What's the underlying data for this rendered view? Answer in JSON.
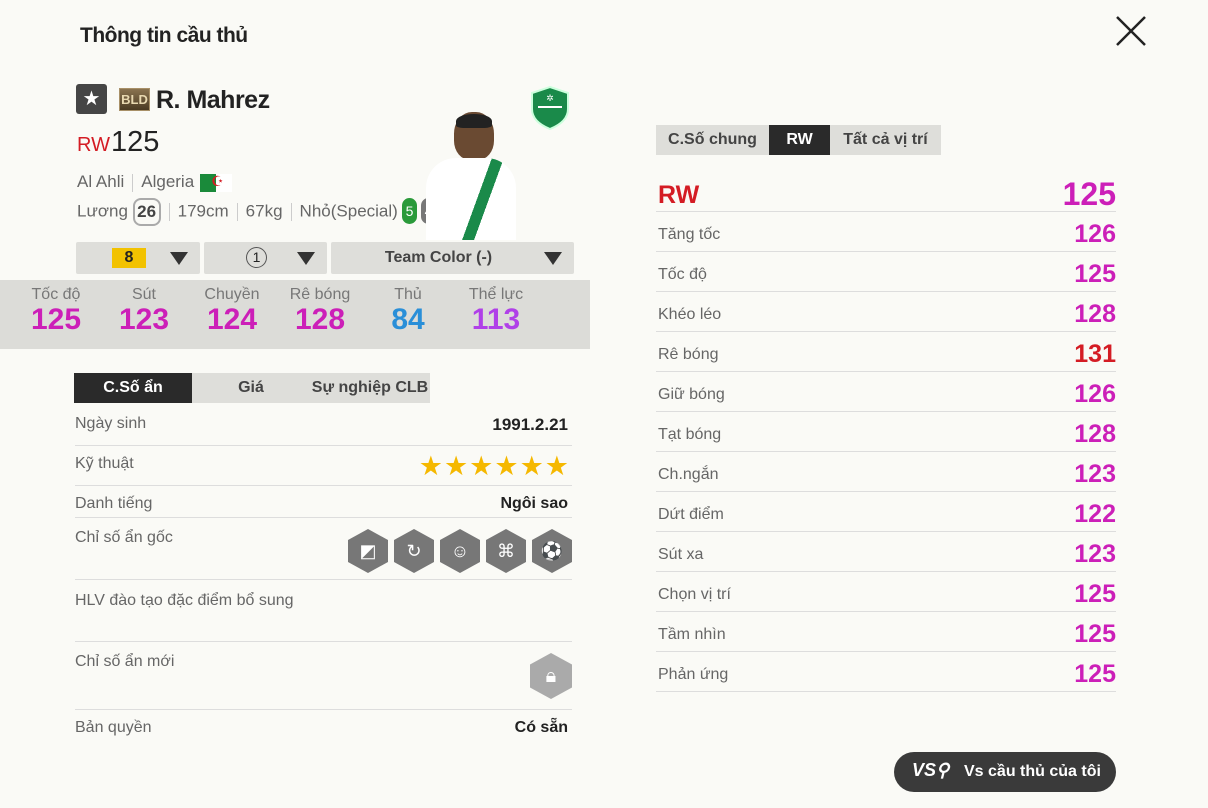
{
  "header": {
    "title": "Thông tin cầu thủ",
    "close_icon": "close-icon"
  },
  "player": {
    "season_badge": "BLD",
    "name": "R. Mahrez",
    "position": "RW",
    "overall": "125",
    "club": "Al Ahli",
    "nation": "Algeria",
    "salary_label": "Lương",
    "salary": "26",
    "height": "179cm",
    "weight": "67kg",
    "body_type": "Nhỏ(Special)",
    "weak_foot_left": "5",
    "weak_foot_right": "4"
  },
  "selectors": {
    "upgrade": "8",
    "level": "1",
    "team_color": "Team Color (-)"
  },
  "summary_stats": [
    {
      "label": "Tốc độ",
      "value": "125",
      "color": "#cc1fb8"
    },
    {
      "label": "Sút",
      "value": "123",
      "color": "#cc1fb8"
    },
    {
      "label": "Chuyền",
      "value": "124",
      "color": "#cc1fb8"
    },
    {
      "label": "Rê bóng",
      "value": "128",
      "color": "#cc1fb8"
    },
    {
      "label": "Thủ",
      "value": "84",
      "color": "#2a8fd8"
    },
    {
      "label": "Thể lực",
      "value": "113",
      "color": "#b040e8"
    }
  ],
  "left_tabs": [
    "C.Số ẩn",
    "Giá",
    "Sự nghiệp CLB"
  ],
  "details": {
    "birth_label": "Ngày sinh",
    "birth": "1991.2.21",
    "skill_label": "Kỹ thuật",
    "skill_stars": 6,
    "skill_stars_text": "★★★★★★",
    "fame_label": "Danh tiếng",
    "fame": "Ngôi sao",
    "traits_label": "Chỉ số ẩn gốc",
    "coach_label": "HLV đào tạo đặc điểm bổ sung",
    "new_traits_label": "Chỉ số ẩn mới",
    "license_label": "Bản quyền",
    "license": "Có sẵn"
  },
  "right_tabs": [
    "C.Số chung",
    "RW",
    "Tất cả vị trí"
  ],
  "position_rating": {
    "label": "RW",
    "value": "125"
  },
  "attributes": [
    {
      "label": "Tăng tốc",
      "value": "126",
      "color": "#cc1fb8"
    },
    {
      "label": "Tốc độ",
      "value": "125",
      "color": "#cc1fb8"
    },
    {
      "label": "Khéo léo",
      "value": "128",
      "color": "#cc1fb8"
    },
    {
      "label": "Rê bóng",
      "value": "131",
      "color": "#d41c24"
    },
    {
      "label": "Giữ bóng",
      "value": "126",
      "color": "#cc1fb8"
    },
    {
      "label": "Tạt bóng",
      "value": "128",
      "color": "#cc1fb8"
    },
    {
      "label": "Ch.ngắn",
      "value": "123",
      "color": "#cc1fb8"
    },
    {
      "label": "Dứt điểm",
      "value": "122",
      "color": "#cc1fb8"
    },
    {
      "label": "Sút xa",
      "value": "123",
      "color": "#cc1fb8"
    },
    {
      "label": "Chọn vị trí",
      "value": "125",
      "color": "#cc1fb8"
    },
    {
      "label": "Tầm nhìn",
      "value": "125",
      "color": "#cc1fb8"
    },
    {
      "label": "Phản ứng",
      "value": "125",
      "color": "#cc1fb8"
    }
  ],
  "compare_button": {
    "icon": "vs",
    "label": "Vs cầu thủ của tôi"
  }
}
